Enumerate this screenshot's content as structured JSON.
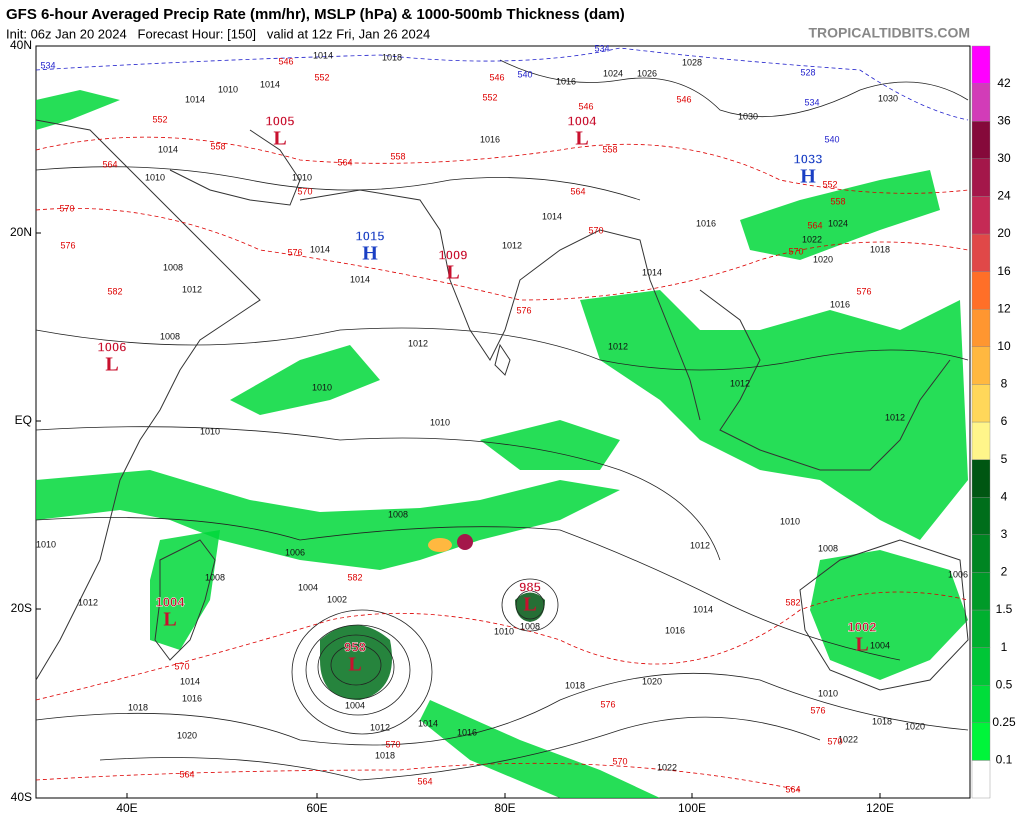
{
  "header": {
    "title": "GFS 6-hour Averaged Precip Rate (mm/hr), MSLP (hPa) & 1000-500mb Thickness (dam)",
    "subtitle": "Init: 06z Jan 20 2024   Forecast Hour: [150]   valid at 12z Fri, Jan 26 2024",
    "site": "TROPICALTIDBITS.COM"
  },
  "map": {
    "lat_labels": [
      "40N",
      "20N",
      "EQ",
      "20S",
      "40S"
    ],
    "lon_labels": [
      "40E",
      "60E",
      "80E",
      "100E",
      "120E"
    ],
    "centers": [
      {
        "pressure": "1005",
        "symbol": "L"
      },
      {
        "pressure": "1015",
        "symbol": "H"
      },
      {
        "pressure": "1009",
        "symbol": "L"
      },
      {
        "pressure": "1004",
        "symbol": "L"
      },
      {
        "pressure": "1033",
        "symbol": "H"
      },
      {
        "pressure": "1006",
        "symbol": "L"
      },
      {
        "pressure": "1004",
        "symbol": "L"
      },
      {
        "pressure": "958",
        "symbol": "L"
      },
      {
        "pressure": "985",
        "symbol": "L"
      },
      {
        "pressure": "1002",
        "symbol": "L"
      }
    ],
    "isobar_labels": [
      "1014",
      "1010",
      "1014",
      "1014",
      "1010",
      "1010",
      "1014",
      "1014",
      "1012",
      "1008",
      "1008",
      "1012",
      "1010",
      "1010",
      "1010",
      "1012",
      "1014",
      "1012",
      "1012",
      "1012",
      "1010",
      "1008",
      "1012",
      "1014",
      "1016",
      "1018",
      "1020",
      "1022",
      "1008",
      "1006",
      "1004",
      "1002",
      "1008",
      "1010",
      "1004",
      "1012",
      "1014",
      "1016",
      "1018",
      "1020",
      "1018",
      "1016",
      "1014",
      "1010",
      "1012",
      "1008",
      "1010",
      "1018",
      "1020",
      "1022",
      "1004",
      "1006",
      "1016",
      "1018",
      "1020",
      "1022",
      "1024",
      "1026",
      "1028",
      "1030",
      "1030",
      "1024",
      "1016",
      "1014",
      "1018",
      "1016",
      "1014",
      "1016"
    ],
    "thickness_labels": [
      "546",
      "552",
      "552",
      "558",
      "564",
      "558",
      "570",
      "564",
      "570",
      "576",
      "576",
      "582",
      "576",
      "570",
      "564",
      "552",
      "546",
      "546",
      "552",
      "558",
      "564",
      "570",
      "576",
      "582",
      "582",
      "576",
      "570",
      "570",
      "570",
      "564",
      "564",
      "564",
      "576",
      "570",
      "546",
      "558"
    ],
    "thickness_labels_cold": [
      "534",
      "534",
      "540",
      "528",
      "534",
      "540"
    ]
  },
  "colorbar": {
    "colors": [
      "#ffffff",
      "#00f53a",
      "#00dd3a",
      "#00c636",
      "#00b02f",
      "#009a28",
      "#008522",
      "#006e1b",
      "#005612",
      "#fff58a",
      "#ffd75a",
      "#ffb840",
      "#ff9630",
      "#ff6f28",
      "#e04848",
      "#c52a55",
      "#a4174a",
      "#85093a",
      "#d23cb8",
      "#ff00ff"
    ],
    "labels": [
      "0.1",
      "0.25",
      "0.5",
      "1",
      "1.5",
      "2",
      "3",
      "4",
      "5",
      "6",
      "8",
      "10",
      "12",
      "16",
      "20",
      "24",
      "30",
      "36",
      "42"
    ]
  }
}
